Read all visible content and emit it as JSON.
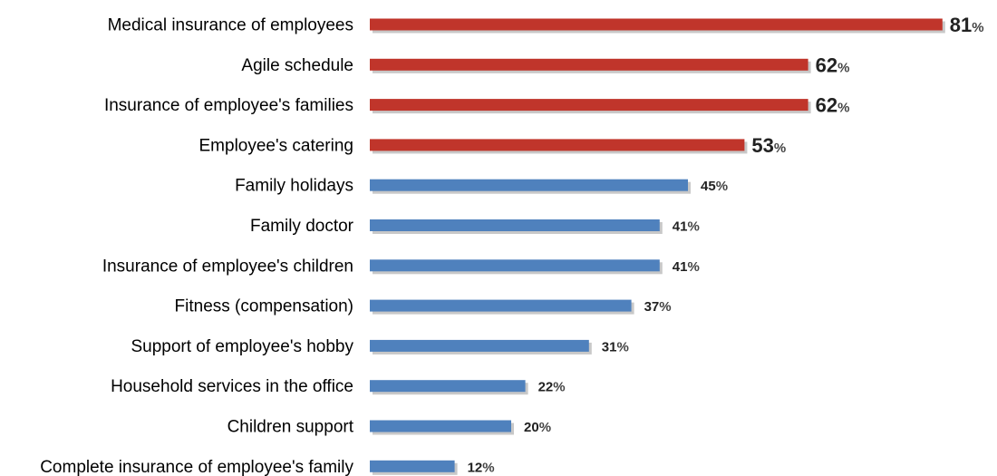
{
  "chart_data": {
    "type": "bar",
    "orientation": "horizontal",
    "categories": [
      "Medical insurance of employees",
      "Agile schedule",
      "Insurance of employee's families",
      "Employee's catering",
      "Family holidays",
      "Family doctor",
      "Insurance of employee's children",
      "Fitness (compensation)",
      "Support of employee's hobby",
      "Household services in the office",
      "Children support",
      "Complete insurance of employee's family"
    ],
    "values": [
      81,
      62,
      62,
      53,
      45,
      41,
      41,
      37,
      31,
      22,
      20,
      12
    ],
    "unit": "%",
    "highlight_count": 4,
    "colors": {
      "highlight": "#c0352b",
      "normal": "#4f81bd",
      "shadow": "#c8c8c8"
    },
    "title": "",
    "xlabel": "",
    "ylabel": "",
    "xlim": [
      0,
      100
    ],
    "grid": false,
    "legend": "none"
  }
}
